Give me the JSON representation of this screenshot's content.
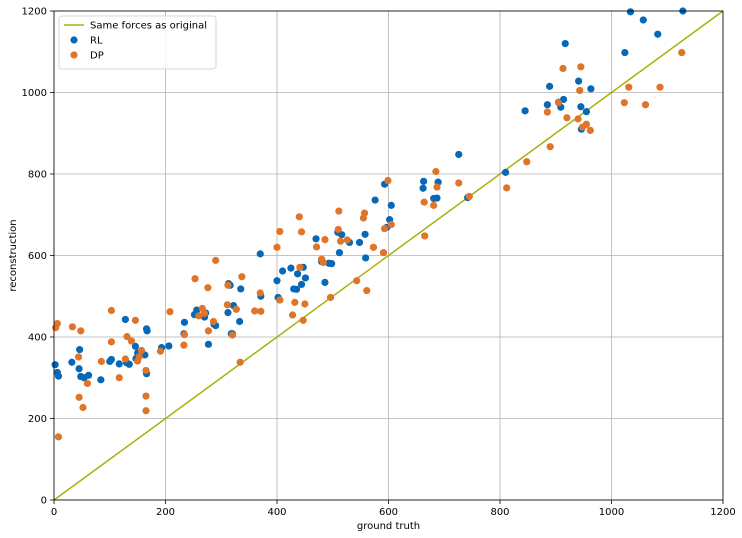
{
  "colors": {
    "line": "#a8b00a",
    "rl": "#0868b8",
    "dp": "#e07428",
    "grid": "#b0b0b0"
  },
  "chart_data": {
    "type": "scatter",
    "xlabel": "ground truth",
    "ylabel": "reconstruction",
    "xlim": [
      0,
      1200
    ],
    "ylim": [
      0,
      1200
    ],
    "xticks": [
      0,
      200,
      400,
      600,
      800,
      1000,
      1200
    ],
    "yticks": [
      0,
      200,
      400,
      600,
      800,
      1000,
      1200
    ],
    "grid": true,
    "legend_position": "top-left",
    "reference_line": {
      "name": "Same forces as original",
      "x": [
        0,
        1200
      ],
      "y": [
        0,
        1200
      ]
    },
    "series": [
      {
        "name": "RL",
        "points": [
          [
            2,
            332
          ],
          [
            6,
            313
          ],
          [
            8,
            304
          ],
          [
            32,
            338
          ],
          [
            46,
            369
          ],
          [
            45,
            322
          ],
          [
            48,
            303
          ],
          [
            54,
            300
          ],
          [
            62,
            306
          ],
          [
            84,
            295
          ],
          [
            100,
            340
          ],
          [
            103,
            345
          ],
          [
            117,
            334
          ],
          [
            128,
            443
          ],
          [
            130,
            337
          ],
          [
            135,
            333
          ],
          [
            147,
            347
          ],
          [
            146,
            377
          ],
          [
            150,
            361
          ],
          [
            163,
            356
          ],
          [
            166,
            310
          ],
          [
            166,
            420
          ],
          [
            167,
            415
          ],
          [
            193,
            374
          ],
          [
            206,
            378
          ],
          [
            233,
            408
          ],
          [
            234,
            436
          ],
          [
            252,
            455
          ],
          [
            256,
            466
          ],
          [
            270,
            449
          ],
          [
            272,
            459
          ],
          [
            277,
            382
          ],
          [
            287,
            431
          ],
          [
            290,
            428
          ],
          [
            312,
            460
          ],
          [
            313,
            531
          ],
          [
            316,
            527
          ],
          [
            318,
            408
          ],
          [
            320,
            408
          ],
          [
            322,
            477
          ],
          [
            333,
            438
          ],
          [
            335,
            518
          ],
          [
            370,
            604
          ],
          [
            371,
            500
          ],
          [
            400,
            538
          ],
          [
            402,
            497
          ],
          [
            405,
            491
          ],
          [
            410,
            562
          ],
          [
            425,
            569
          ],
          [
            430,
            518
          ],
          [
            435,
            517
          ],
          [
            437,
            555
          ],
          [
            444,
            529
          ],
          [
            447,
            571
          ],
          [
            451,
            545
          ],
          [
            470,
            641
          ],
          [
            480,
            585
          ],
          [
            486,
            534
          ],
          [
            493,
            581
          ],
          [
            498,
            580
          ],
          [
            509,
            657
          ],
          [
            512,
            607
          ],
          [
            516,
            651
          ],
          [
            530,
            632
          ],
          [
            548,
            632
          ],
          [
            558,
            652
          ],
          [
            559,
            594
          ],
          [
            576,
            736
          ],
          [
            593,
            775
          ],
          [
            597,
            669
          ],
          [
            602,
            688
          ],
          [
            605,
            723
          ],
          [
            662,
            765
          ],
          [
            663,
            782
          ],
          [
            681,
            740
          ],
          [
            687,
            741
          ],
          [
            689,
            780
          ],
          [
            726,
            848
          ],
          [
            742,
            742
          ],
          [
            810,
            804
          ],
          [
            845,
            955
          ],
          [
            885,
            970
          ],
          [
            889,
            1015
          ],
          [
            905,
            976
          ],
          [
            909,
            964
          ],
          [
            914,
            983
          ],
          [
            917,
            1120
          ],
          [
            941,
            1028
          ],
          [
            945,
            965
          ],
          [
            946,
            910
          ],
          [
            955,
            953
          ],
          [
            963,
            1009
          ],
          [
            1024,
            1098
          ],
          [
            1034,
            1198
          ],
          [
            1057,
            1178
          ],
          [
            1083,
            1143
          ],
          [
            1128,
            1200
          ]
        ]
      },
      {
        "name": "DP",
        "points": [
          [
            3,
            423
          ],
          [
            6,
            433
          ],
          [
            8,
            155
          ],
          [
            33,
            425
          ],
          [
            44,
            351
          ],
          [
            45,
            252
          ],
          [
            48,
            415
          ],
          [
            52,
            227
          ],
          [
            60,
            286
          ],
          [
            85,
            340
          ],
          [
            103,
            465
          ],
          [
            103,
            388
          ],
          [
            117,
            300
          ],
          [
            128,
            346
          ],
          [
            131,
            401
          ],
          [
            139,
            390
          ],
          [
            146,
            441
          ],
          [
            150,
            341
          ],
          [
            153,
            352
          ],
          [
            157,
            367
          ],
          [
            165,
            318
          ],
          [
            165,
            255
          ],
          [
            165,
            219
          ],
          [
            191,
            365
          ],
          [
            208,
            462
          ],
          [
            233,
            380
          ],
          [
            234,
            406
          ],
          [
            253,
            543
          ],
          [
            260,
            452
          ],
          [
            266,
            470
          ],
          [
            270,
            458
          ],
          [
            276,
            521
          ],
          [
            277,
            415
          ],
          [
            286,
            438
          ],
          [
            290,
            588
          ],
          [
            311,
            479
          ],
          [
            312,
            527
          ],
          [
            320,
            405
          ],
          [
            327,
            468
          ],
          [
            334,
            338
          ],
          [
            337,
            548
          ],
          [
            360,
            464
          ],
          [
            370,
            508
          ],
          [
            371,
            463
          ],
          [
            400,
            620
          ],
          [
            405,
            659
          ],
          [
            405,
            491
          ],
          [
            428,
            454
          ],
          [
            432,
            485
          ],
          [
            440,
            695
          ],
          [
            441,
            571
          ],
          [
            444,
            658
          ],
          [
            447,
            441
          ],
          [
            450,
            481
          ],
          [
            471,
            621
          ],
          [
            480,
            591
          ],
          [
            483,
            583
          ],
          [
            486,
            639
          ],
          [
            496,
            497
          ],
          [
            510,
            664
          ],
          [
            511,
            709
          ],
          [
            514,
            635
          ],
          [
            526,
            638
          ],
          [
            543,
            538
          ],
          [
            555,
            692
          ],
          [
            557,
            704
          ],
          [
            561,
            514
          ],
          [
            573,
            620
          ],
          [
            591,
            607
          ],
          [
            593,
            666
          ],
          [
            599,
            784
          ],
          [
            605,
            676
          ],
          [
            664,
            731
          ],
          [
            665,
            648
          ],
          [
            681,
            723
          ],
          [
            685,
            806
          ],
          [
            687,
            768
          ],
          [
            726,
            778
          ],
          [
            745,
            745
          ],
          [
            812,
            766
          ],
          [
            848,
            830
          ],
          [
            885,
            952
          ],
          [
            890,
            867
          ],
          [
            905,
            975
          ],
          [
            913,
            1059
          ],
          [
            920,
            938
          ],
          [
            940,
            935
          ],
          [
            943,
            1005
          ],
          [
            945,
            1063
          ],
          [
            948,
            915
          ],
          [
            955,
            922
          ],
          [
            962,
            907
          ],
          [
            1023,
            975
          ],
          [
            1031,
            1013
          ],
          [
            1061,
            970
          ],
          [
            1087,
            1013
          ],
          [
            1126,
            1098
          ]
        ]
      }
    ]
  }
}
